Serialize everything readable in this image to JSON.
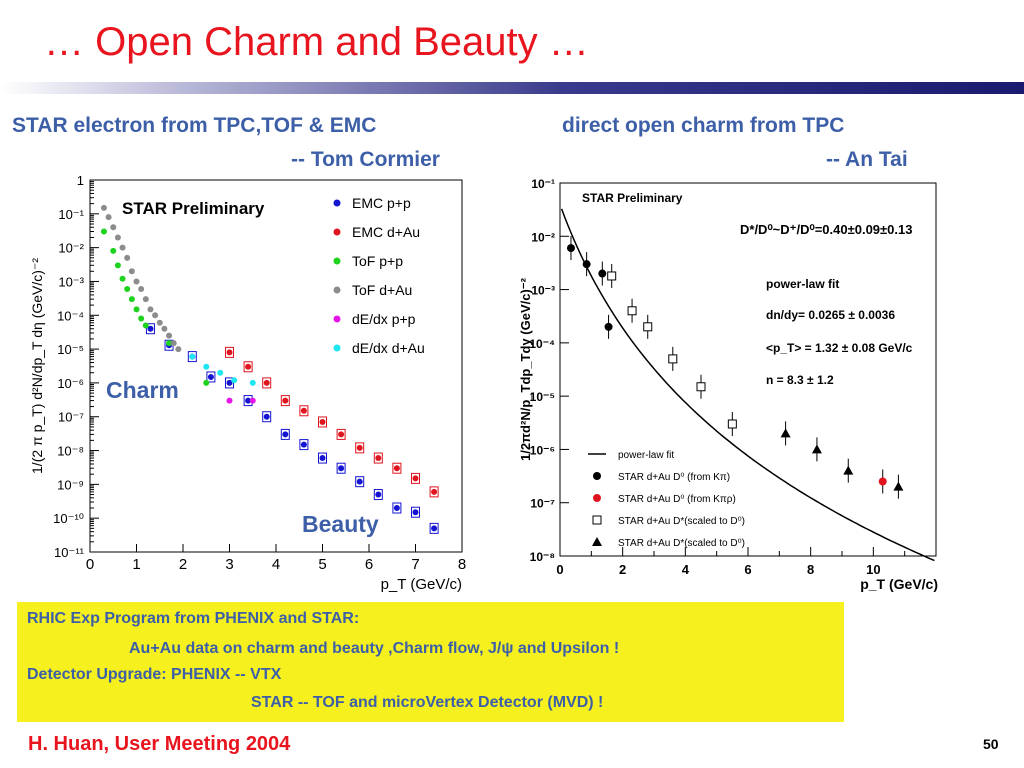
{
  "slide": {
    "title": "… Open Charm and Beauty …",
    "left_header_1": "STAR electron from TPC,TOF & EMC",
    "left_header_2": "-- Tom Cormier",
    "right_header_1": "direct open charm from TPC",
    "right_header_2": "-- An Tai",
    "info_lines": [
      "RHIC Exp Program from PHENIX and STAR:",
      "Au+Au data on charm and beauty ,Charm flow, J/ψ and Upsilon !",
      "Detector Upgrade: PHENIX -- VTX",
      "STAR -- TOF and microVertex Detector (MVD) !"
    ],
    "footer": "H. Huan, User Meeting 2004",
    "page_number": "50",
    "colors": {
      "title": "#e8141e",
      "headers": "#3d5fa8",
      "infobox_bg": "#f5f01e"
    }
  },
  "chart_data": [
    {
      "type": "scatter",
      "yscale": "log",
      "xlabel": "p_T (GeV/c)",
      "ylabel": "1/(2 π p_T) d²N/dp_T dη (GeV/c)⁻²",
      "xlim": [
        0,
        8
      ],
      "ylim": [
        1e-11,
        1
      ],
      "xticks": [
        "0",
        "1",
        "2",
        "3",
        "4",
        "5",
        "6",
        "7",
        "8"
      ],
      "yticks": [
        "1",
        "10⁻¹",
        "10⁻²",
        "10⁻³",
        "10⁻⁴",
        "10⁻⁵",
        "10⁻⁶",
        "10⁻⁷",
        "10⁻⁸",
        "10⁻⁹",
        "10⁻¹⁰",
        "10⁻¹¹"
      ],
      "annotations": [
        "STAR Preliminary",
        "Charm",
        "Beauty"
      ],
      "legend_position": "top-right",
      "series": [
        {
          "name": "EMC p+p",
          "color": "#1414d2",
          "marker": "dot",
          "boxed": true,
          "x": [
            1.3,
            1.7,
            2.2,
            2.6,
            3.0,
            3.4,
            3.8,
            4.2,
            4.6,
            5.0,
            5.4,
            5.8,
            6.2,
            6.6,
            7.0,
            7.4
          ],
          "y": [
            4e-05,
            1.3e-05,
            6e-06,
            1.5e-06,
            1e-06,
            3e-07,
            1e-07,
            3e-08,
            1.5e-08,
            6e-09,
            3e-09,
            1.2e-09,
            5e-10,
            2e-10,
            1.5e-10,
            5e-11
          ]
        },
        {
          "name": "EMC d+Au",
          "color": "#e0141e",
          "marker": "dot",
          "boxed": true,
          "x": [
            3.0,
            3.4,
            3.8,
            4.2,
            4.6,
            5.0,
            5.4,
            5.8,
            6.2,
            6.6,
            7.0,
            7.4
          ],
          "y": [
            8e-06,
            3e-06,
            1e-06,
            3e-07,
            1.5e-07,
            7e-08,
            3e-08,
            1.2e-08,
            6e-09,
            3e-09,
            1.5e-09,
            6e-10
          ]
        },
        {
          "name": "ToF p+p",
          "color": "#1ed21e",
          "marker": "dot",
          "boxed": false,
          "x": [
            0.3,
            0.5,
            0.6,
            0.7,
            0.8,
            0.9,
            1.0,
            1.1,
            1.2,
            1.7,
            2.5
          ],
          "y": [
            0.03,
            0.008,
            0.003,
            0.0012,
            0.0006,
            0.0003,
            0.00015,
            8e-05,
            5e-05,
            1.5e-05,
            1e-06
          ]
        },
        {
          "name": "ToF d+Au",
          "color": "#8c8c8c",
          "marker": "dot",
          "boxed": false,
          "x": [
            0.3,
            0.4,
            0.5,
            0.6,
            0.7,
            0.8,
            0.9,
            1.0,
            1.1,
            1.2,
            1.3,
            1.4,
            1.5,
            1.6,
            1.7,
            1.8,
            1.9
          ],
          "y": [
            0.15,
            0.08,
            0.04,
            0.02,
            0.01,
            0.005,
            0.002,
            0.001,
            0.0006,
            0.0003,
            0.00015,
            0.0001,
            6e-05,
            4e-05,
            2.5e-05,
            1.5e-05,
            1e-05
          ]
        },
        {
          "name": "dE/dx p+p",
          "color": "#e614e6",
          "marker": "dot",
          "boxed": false,
          "x": [
            3.0,
            3.5
          ],
          "y": [
            3e-07,
            3e-07
          ]
        },
        {
          "name": "dE/dx d+Au",
          "color": "#1ee6f0",
          "marker": "dot",
          "boxed": false,
          "x": [
            2.2,
            2.5,
            2.8,
            3.1,
            3.5
          ],
          "y": [
            6e-06,
            3e-06,
            2e-06,
            1.2e-06,
            1e-06
          ]
        }
      ]
    },
    {
      "type": "scatter",
      "yscale": "log",
      "xlabel": "p_T (GeV/c)",
      "ylabel": "1/2πd²N/p_Tdp_Tdy (GeV/c)⁻²",
      "xlim": [
        0,
        12
      ],
      "ylim": [
        1e-08,
        0.1
      ],
      "xticks": [
        "0",
        "2",
        "4",
        "6",
        "8",
        "10"
      ],
      "yticks": [
        "10⁻¹",
        "10⁻²",
        "10⁻³",
        "10⁻⁴",
        "10⁻⁵",
        "10⁻⁶",
        "10⁻⁷",
        "10⁻⁸"
      ],
      "annotations": [
        "STAR Preliminary",
        "D*/D⁰~D⁺/D⁰=0.40±0.09±0.13",
        "power-law fit",
        "dn/dy= 0.0265 ± 0.0036",
        "<p_T> = 1.32 ± 0.08 GeV/c",
        "n = 8.3 ± 1.2"
      ],
      "legend_position": "bottom-left",
      "fit": {
        "name": "power-law fit",
        "dndy": 0.0265,
        "mean_pt": 1.32,
        "n": 8.3
      },
      "series": [
        {
          "name": "STAR d+Au D⁰ (from Kπ)",
          "color": "#000000",
          "marker": "circle",
          "x": [
            0.35,
            0.85,
            1.35,
            1.55
          ],
          "y": [
            0.006,
            0.003,
            0.002,
            0.0002
          ]
        },
        {
          "name": "STAR d+Au D⁰ (from Kπρ)",
          "color": "#e0141e",
          "marker": "circle",
          "x": [
            10.3
          ],
          "y": [
            2.5e-07
          ]
        },
        {
          "name": "STAR d+Au D*(scaled to D⁰)",
          "color": "#000000",
          "marker": "open-square",
          "x": [
            1.65,
            2.3,
            2.8,
            3.6,
            4.5,
            5.5
          ],
          "y": [
            0.0018,
            0.0004,
            0.0002,
            5e-05,
            1.5e-05,
            3e-06
          ]
        },
        {
          "name": "STAR d+Au D*(scaled to D⁰)",
          "color": "#000000",
          "marker": "triangle",
          "x": [
            7.2,
            8.2,
            9.2,
            10.8
          ],
          "y": [
            2e-06,
            1e-06,
            4e-07,
            2e-07
          ]
        }
      ]
    }
  ]
}
